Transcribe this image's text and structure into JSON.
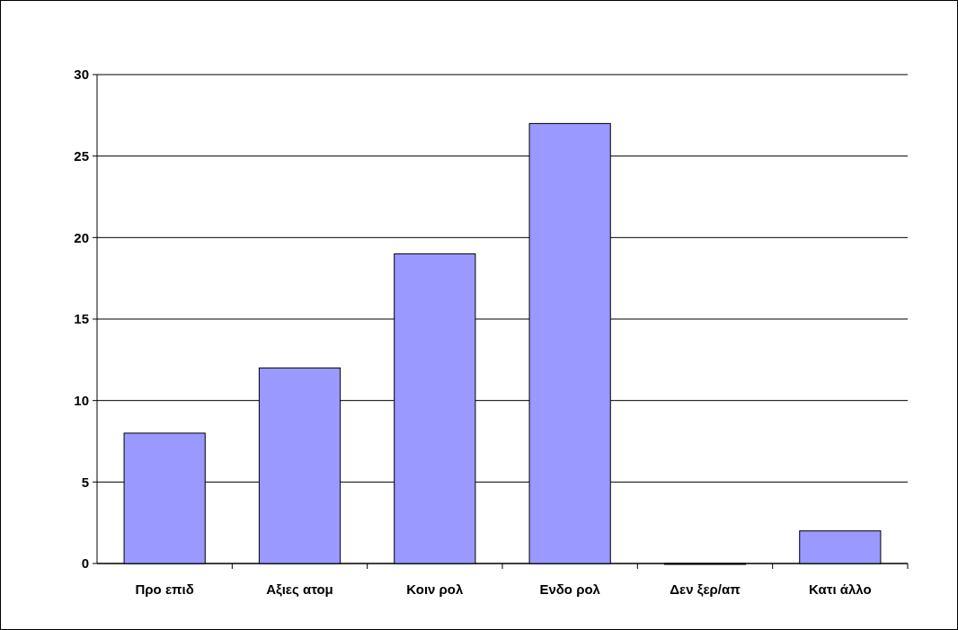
{
  "chart_data": {
    "type": "bar",
    "categories": [
      "Προ επιδ",
      "Αξιες ατομ",
      "Κοιν ρολ",
      "Ενδο ρολ",
      "Δεν ξερ/απ",
      "Κατι άλλο"
    ],
    "values": [
      8,
      12,
      19,
      27,
      0,
      2
    ],
    "color": "#9999ff",
    "ylim": [
      0,
      30
    ],
    "yticks": [
      0,
      5,
      10,
      15,
      20,
      25,
      30
    ],
    "grid": "y"
  }
}
